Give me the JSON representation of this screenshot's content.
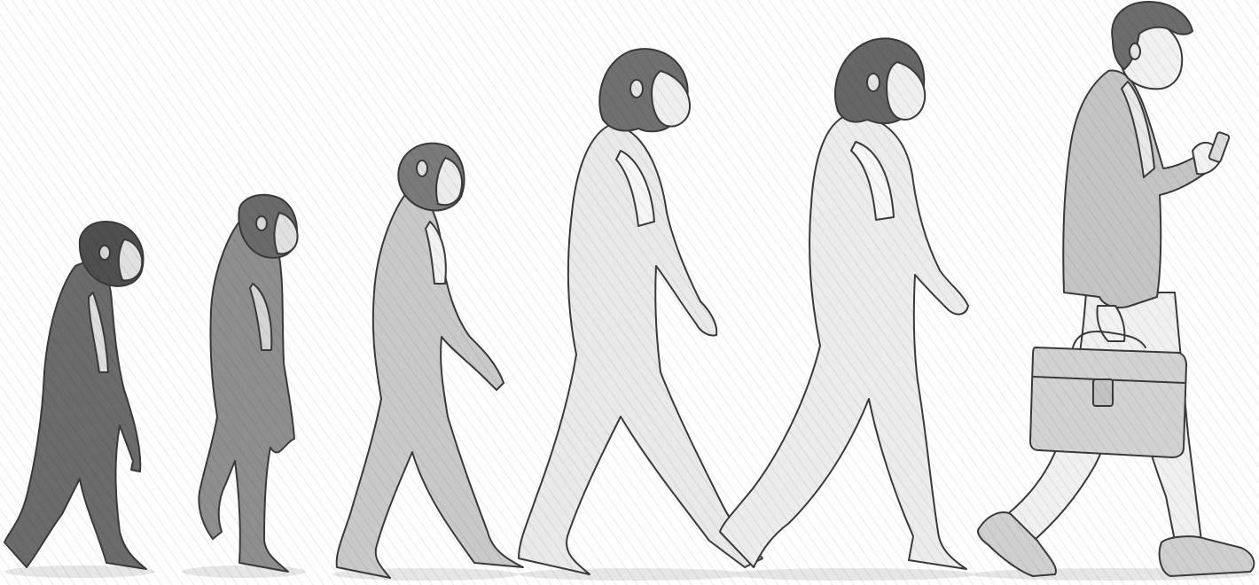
{
  "scene": {
    "subject": "march-of-progress",
    "style": "pencil-sketch",
    "figures": [
      {
        "stage": "ape",
        "fill": "#6b6b6b",
        "hair": "#4f4f4f"
      },
      {
        "stage": "early-hominid",
        "fill": "#8e8e8e",
        "hair": "#6a6a6a"
      },
      {
        "stage": "australopithecus",
        "fill": "#c9c9c9",
        "hair": "#7a7a7a"
      },
      {
        "stage": "homo-erectus",
        "fill": "#e9e9e9",
        "hair": "#707070"
      },
      {
        "stage": "homo-sapiens",
        "fill": "#ececec",
        "hair": "#666666"
      },
      {
        "stage": "modern-businessman",
        "fill": "#c4c4c4",
        "hair": "#6c6c6c",
        "accessories": [
          "smartphone",
          "briefcase"
        ]
      }
    ],
    "colors": {
      "background": "#ffffff",
      "outline": "#3a3a3a",
      "ground_shadow": "#e6e6e6"
    }
  }
}
